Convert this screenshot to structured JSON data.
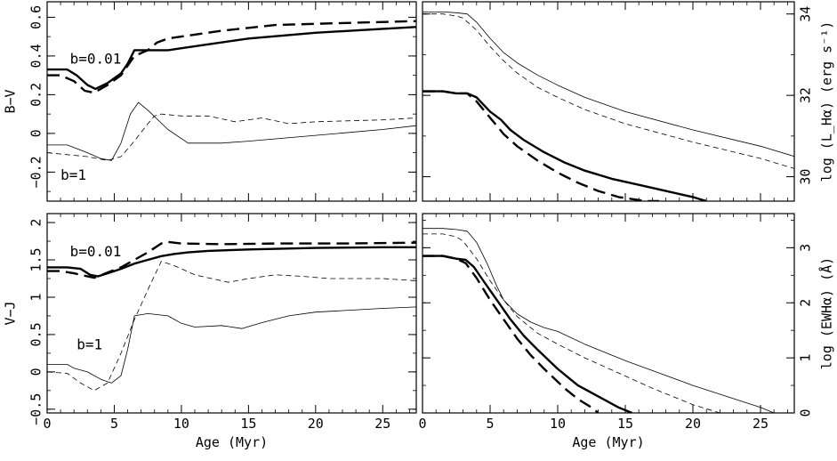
{
  "chart_data": [
    {
      "type": "line",
      "panel": "top-left",
      "ylabel": "B−V",
      "xlabel": "",
      "xlim": [
        0,
        27.5
      ],
      "ylim": [
        -0.35,
        0.68
      ],
      "xticks": [
        0,
        5,
        10,
        15,
        20,
        25
      ],
      "xticklabels": [
        "",
        "",
        "",
        "",
        "",
        ""
      ],
      "yticks": [
        -0.2,
        0,
        0.2,
        0.4,
        0.6
      ],
      "yticklabels": [
        "−0.2",
        "0",
        "0.2",
        "0.4",
        "0.6"
      ],
      "annotations": [
        {
          "text": "b=0.01",
          "x": 1.7,
          "y": 0.36
        },
        {
          "text": "b=1",
          "x": 1.0,
          "y": -0.24
        }
      ],
      "series": [
        {
          "style": "thick-solid",
          "x": [
            0,
            1.5,
            2.2,
            3.0,
            3.6,
            4.5,
            5.5,
            6.0,
            6.5,
            7.5,
            9.0,
            10.0,
            12.0,
            15.0,
            20.0,
            25.0,
            27.5
          ],
          "y": [
            0.33,
            0.33,
            0.3,
            0.25,
            0.23,
            0.26,
            0.31,
            0.36,
            0.43,
            0.43,
            0.43,
            0.44,
            0.46,
            0.49,
            0.52,
            0.54,
            0.55
          ]
        },
        {
          "style": "thick-dashed",
          "x": [
            0,
            1.0,
            2.0,
            2.8,
            3.5,
            4.5,
            5.5,
            6.5,
            7.5,
            8.2,
            9.0,
            10.0,
            13.0,
            17.0,
            22.0,
            27.5
          ],
          "y": [
            0.3,
            0.3,
            0.27,
            0.22,
            0.21,
            0.25,
            0.3,
            0.4,
            0.43,
            0.47,
            0.49,
            0.5,
            0.53,
            0.56,
            0.57,
            0.58
          ]
        },
        {
          "style": "thin-solid",
          "x": [
            0,
            1.5,
            3.0,
            4.0,
            4.8,
            5.5,
            6.2,
            6.8,
            7.5,
            9.0,
            10.5,
            13.0,
            15.0,
            20.0,
            25.0,
            27.5
          ],
          "y": [
            -0.06,
            -0.06,
            -0.1,
            -0.13,
            -0.14,
            -0.05,
            0.1,
            0.16,
            0.12,
            0.02,
            -0.05,
            -0.05,
            -0.04,
            -0.01,
            0.02,
            0.04
          ]
        },
        {
          "style": "thin-dashed",
          "x": [
            0,
            1.5,
            3.0,
            4.5,
            5.5,
            6.5,
            7.5,
            8.0,
            8.5,
            10.0,
            12.0,
            14.0,
            16.0,
            18.0,
            20.0,
            25.0,
            27.5
          ],
          "y": [
            -0.1,
            -0.11,
            -0.12,
            -0.14,
            -0.12,
            -0.04,
            0.05,
            0.09,
            0.1,
            0.09,
            0.09,
            0.06,
            0.08,
            0.05,
            0.06,
            0.07,
            0.08
          ]
        }
      ]
    },
    {
      "type": "line",
      "panel": "top-right",
      "ylabel": "log (L_Hα) (erg s⁻¹)",
      "xlabel": "",
      "xlim": [
        0,
        27.5
      ],
      "ylim": [
        29.4,
        34.3
      ],
      "xticks": [
        0,
        5,
        10,
        15,
        20,
        25
      ],
      "xticklabels": [
        "",
        "",
        "",
        "",
        "",
        ""
      ],
      "yticks": [
        30,
        32,
        34
      ],
      "yticklabels": [
        "30",
        "32",
        "34"
      ],
      "series": [
        {
          "style": "thin-solid",
          "x": [
            0,
            1.5,
            2.5,
            3.3,
            4.0,
            5.0,
            6.0,
            7.0,
            8.5,
            10.0,
            12.0,
            15.0,
            20.0,
            25.0,
            27.5
          ],
          "y": [
            34.05,
            34.05,
            34.03,
            34.0,
            33.8,
            33.4,
            33.05,
            32.8,
            32.5,
            32.25,
            31.95,
            31.6,
            31.15,
            30.75,
            30.5
          ]
        },
        {
          "style": "thin-dashed",
          "x": [
            0,
            1.5,
            2.5,
            3.0,
            4.0,
            5.0,
            6.0,
            7.0,
            8.5,
            10.0,
            12.0,
            15.0,
            20.0,
            25.0,
            27.5
          ],
          "y": [
            34.0,
            34.0,
            33.95,
            33.9,
            33.6,
            33.2,
            32.85,
            32.55,
            32.2,
            31.95,
            31.65,
            31.3,
            30.85,
            30.45,
            30.2
          ]
        },
        {
          "style": "thick-solid",
          "x": [
            0,
            1.5,
            2.5,
            3.3,
            4.0,
            5.0,
            5.8,
            6.5,
            7.5,
            9.0,
            10.5,
            12.0,
            14.0,
            16.0,
            18.0,
            20.0,
            21.0
          ],
          "y": [
            32.1,
            32.1,
            32.05,
            32.05,
            31.95,
            31.6,
            31.4,
            31.15,
            30.9,
            30.6,
            30.35,
            30.15,
            29.95,
            29.8,
            29.65,
            29.5,
            29.4
          ]
        },
        {
          "style": "thick-dashed",
          "x": [
            0,
            1.5,
            2.5,
            3.3,
            4.0,
            5.0,
            6.0,
            7.0,
            8.5,
            10.0,
            11.5,
            13.0,
            14.5,
            16.5,
            17.5
          ],
          "y": [
            32.1,
            32.1,
            32.05,
            32.05,
            31.85,
            31.45,
            31.05,
            30.75,
            30.4,
            30.1,
            29.85,
            29.65,
            29.5,
            29.4,
            29.4
          ]
        }
      ]
    },
    {
      "type": "line",
      "panel": "bottom-left",
      "ylabel": "V−J",
      "xlabel": "Age (Myr)",
      "xlim": [
        0,
        27.5
      ],
      "ylim": [
        -0.55,
        2.12
      ],
      "xticks": [
        0,
        5,
        10,
        15,
        20,
        25
      ],
      "xticklabels": [
        "0",
        "5",
        "10",
        "15",
        "20",
        "25"
      ],
      "yticks": [
        -0.5,
        0,
        0.5,
        1,
        1.5,
        2
      ],
      "yticklabels": [
        "−0.5",
        "0",
        "0.5",
        "1",
        "1.5",
        "2"
      ],
      "annotations": [
        {
          "text": "b=0.01",
          "x": 1.7,
          "y": 1.55
        },
        {
          "text": "b=1",
          "x": 2.2,
          "y": 0.3
        }
      ],
      "series": [
        {
          "style": "thick-solid",
          "x": [
            0,
            1.5,
            2.5,
            3.2,
            3.8,
            4.5,
            5.5,
            6.5,
            7.5,
            8.5,
            9.5,
            10.5,
            12.0,
            15.0,
            20.0,
            25.0,
            27.5
          ],
          "y": [
            1.4,
            1.4,
            1.38,
            1.3,
            1.28,
            1.32,
            1.38,
            1.45,
            1.5,
            1.55,
            1.58,
            1.6,
            1.62,
            1.64,
            1.66,
            1.67,
            1.67
          ]
        },
        {
          "style": "thick-dashed",
          "x": [
            0,
            1.0,
            2.0,
            3.0,
            3.5,
            4.5,
            5.5,
            6.5,
            7.5,
            8.5,
            9.0,
            10.0,
            13.0,
            17.0,
            22.0,
            27.5
          ],
          "y": [
            1.35,
            1.35,
            1.32,
            1.28,
            1.26,
            1.33,
            1.4,
            1.5,
            1.6,
            1.72,
            1.74,
            1.72,
            1.71,
            1.72,
            1.72,
            1.73
          ]
        },
        {
          "style": "thin-solid",
          "x": [
            0,
            1.5,
            2.0,
            3.0,
            4.0,
            4.8,
            5.5,
            6.0,
            6.5,
            7.5,
            9.0,
            10.0,
            11.0,
            13.0,
            14.5,
            16.0,
            18.0,
            20.0,
            25.0,
            27.5
          ],
          "y": [
            0.1,
            0.1,
            0.05,
            0.0,
            -0.1,
            -0.15,
            -0.05,
            0.3,
            0.75,
            0.78,
            0.75,
            0.65,
            0.6,
            0.62,
            0.58,
            0.66,
            0.75,
            0.8,
            0.85,
            0.87
          ]
        },
        {
          "style": "thin-dashed",
          "x": [
            0,
            1.5,
            2.5,
            3.5,
            4.5,
            5.5,
            6.5,
            7.5,
            8.5,
            9.5,
            11.0,
            13.5,
            15.0,
            17.0,
            19.0,
            21.0,
            25.0,
            27.5
          ],
          "y": [
            0.0,
            -0.02,
            -0.15,
            -0.25,
            -0.15,
            0.25,
            0.7,
            1.1,
            1.48,
            1.42,
            1.3,
            1.2,
            1.25,
            1.3,
            1.28,
            1.25,
            1.25,
            1.22
          ]
        }
      ]
    },
    {
      "type": "line",
      "panel": "bottom-right",
      "ylabel": "log (EWHα) (Å)",
      "xlabel": "Age (Myr)",
      "xlim": [
        0,
        27.5
      ],
      "ylim": [
        0,
        3.62
      ],
      "xticks": [
        0,
        5,
        10,
        15,
        20,
        25
      ],
      "xticklabels": [
        "0",
        "5",
        "10",
        "15",
        "20",
        "25"
      ],
      "yticks": [
        0,
        1,
        2,
        3
      ],
      "yticklabels": [
        "0",
        "1",
        "2",
        "3"
      ],
      "series": [
        {
          "style": "thin-solid",
          "x": [
            0,
            1.5,
            2.5,
            3.3,
            4.0,
            4.8,
            5.5,
            6.0,
            7.0,
            8.0,
            9.0,
            10.0,
            12.0,
            15.0,
            20.0,
            25.0,
            26.0
          ],
          "y": [
            3.35,
            3.35,
            3.33,
            3.3,
            3.1,
            2.7,
            2.3,
            2.05,
            1.8,
            1.65,
            1.55,
            1.48,
            1.25,
            0.95,
            0.5,
            0.1,
            0.0
          ]
        },
        {
          "style": "thin-dashed",
          "x": [
            0,
            1.5,
            2.5,
            3.0,
            4.0,
            5.0,
            6.0,
            7.0,
            8.5,
            10.0,
            12.0,
            14.0,
            17.0,
            20.0,
            22.0
          ],
          "y": [
            3.25,
            3.25,
            3.2,
            3.12,
            2.8,
            2.4,
            2.05,
            1.75,
            1.45,
            1.25,
            1.0,
            0.78,
            0.45,
            0.15,
            0.0
          ]
        },
        {
          "style": "thick-solid",
          "x": [
            0,
            1.5,
            2.5,
            3.2,
            3.8,
            4.5,
            5.5,
            6.5,
            7.5,
            8.5,
            10.0,
            11.5,
            13.0,
            14.5,
            15.5
          ],
          "y": [
            2.85,
            2.85,
            2.8,
            2.78,
            2.65,
            2.4,
            2.05,
            1.7,
            1.4,
            1.15,
            0.8,
            0.5,
            0.3,
            0.1,
            0.0
          ]
        },
        {
          "style": "thick-dashed",
          "x": [
            0,
            1.5,
            2.5,
            3.2,
            4.0,
            5.0,
            6.0,
            7.0,
            8.0,
            9.0,
            10.5,
            11.5,
            12.5,
            13.0
          ],
          "y": [
            2.85,
            2.85,
            2.8,
            2.72,
            2.45,
            2.05,
            1.7,
            1.35,
            1.05,
            0.8,
            0.45,
            0.25,
            0.1,
            0.0
          ]
        }
      ]
    }
  ]
}
